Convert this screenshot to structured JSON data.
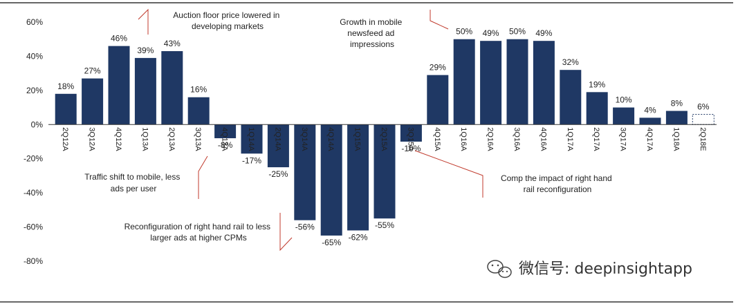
{
  "chart_data": {
    "type": "bar",
    "categories": [
      "2Q12A",
      "3Q12A",
      "4Q12A",
      "1Q13A",
      "2Q13A",
      "3Q13A",
      "4Q13A",
      "1Q14A",
      "2Q14A",
      "3Q14A",
      "4Q14A",
      "1Q15A",
      "2Q15A",
      "3Q15A",
      "4Q15A",
      "1Q16A",
      "2Q16A",
      "3Q16A",
      "4Q16A",
      "1Q17A",
      "2Q17A",
      "3Q17A",
      "4Q17A",
      "1Q18A",
      "2Q18E"
    ],
    "values": [
      18,
      27,
      46,
      39,
      43,
      16,
      -8,
      -17,
      -25,
      -56,
      -65,
      -62,
      -55,
      -10,
      29,
      50,
      49,
      50,
      49,
      32,
      19,
      10,
      4,
      8,
      6
    ],
    "value_labels": [
      "18%",
      "27%",
      "46%",
      "39%",
      "43%",
      "16%",
      "-8%",
      "-17%",
      "-25%",
      "-56%",
      "-65%",
      "-62%",
      "-55%",
      "-10%",
      "29%",
      "50%",
      "49%",
      "50%",
      "49%",
      "32%",
      "19%",
      "10%",
      "4%",
      "8%",
      "6%"
    ],
    "estimate_index": 24,
    "yticks": [
      60,
      40,
      20,
      0,
      -20,
      -40,
      -60,
      -80
    ],
    "ytick_labels": [
      "60%",
      "40%",
      "20%",
      "0%",
      "-20%",
      "-40%",
      "-60%",
      "-80%"
    ],
    "ylim": [
      -80,
      60
    ],
    "title": "",
    "xlabel": "",
    "ylabel": "",
    "grid": false,
    "colors": {
      "bar": "#1f3864",
      "estimate_fill": "#ffffff",
      "estimate_stroke": "#1f3864",
      "annotation_line": "#c0392b",
      "axis": "#333333"
    },
    "annotations": [
      {
        "id": "auction",
        "lines": [
          "Auction floor price lowered in",
          "developing markets"
        ]
      },
      {
        "id": "mobile-growth",
        "lines": [
          "Growth in mobile",
          "newsfeed ad",
          "impressions"
        ]
      },
      {
        "id": "traffic",
        "lines": [
          "Traffic shift to mobile, less",
          "ads per user"
        ]
      },
      {
        "id": "reconfig",
        "lines": [
          "Reconfiguration of right hand rail to less",
          "larger ads at higher CPMs"
        ]
      },
      {
        "id": "comp",
        "lines": [
          "Comp the impact of right hand",
          "rail reconfiguration"
        ]
      }
    ]
  },
  "watermark": {
    "icon": "wechat-icon",
    "text": "微信号: deepinsightapp"
  }
}
